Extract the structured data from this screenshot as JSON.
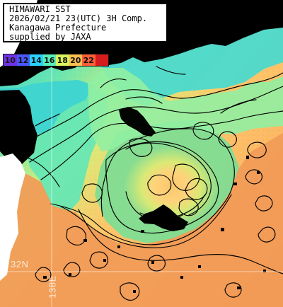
{
  "title": {
    "lines": [
      "HIMAWARI SST",
      "2026/02/21 23(UTC) 3H Comp.",
      "Kanagawa Prefecture",
      "supplied by JAXA"
    ]
  },
  "legend": {
    "items": [
      {
        "label": "10",
        "color": "#6f32e8"
      },
      {
        "label": "12",
        "color": "#4a58ff"
      },
      {
        "label": "14",
        "color": "#27d2ff"
      },
      {
        "label": "16",
        "color": "#59efb8"
      },
      {
        "label": "18",
        "color": "#d9f25e"
      },
      {
        "label": "20",
        "color": "#ffbe50"
      },
      {
        "label": "22",
        "color": "#ff5f39"
      },
      {
        "label": "",
        "color": "#d61d1d"
      }
    ]
  },
  "grid_labels": {
    "lat": "32N",
    "lon": "138E"
  },
  "colors": {
    "land": "#000000",
    "contour": "#000000",
    "cloud_gap": "#ffffff",
    "warm_water": "#f39b55",
    "mid_water": "#ffd16a",
    "cool_water": "#7fe39a",
    "cold_water": "#31d0d8"
  }
}
